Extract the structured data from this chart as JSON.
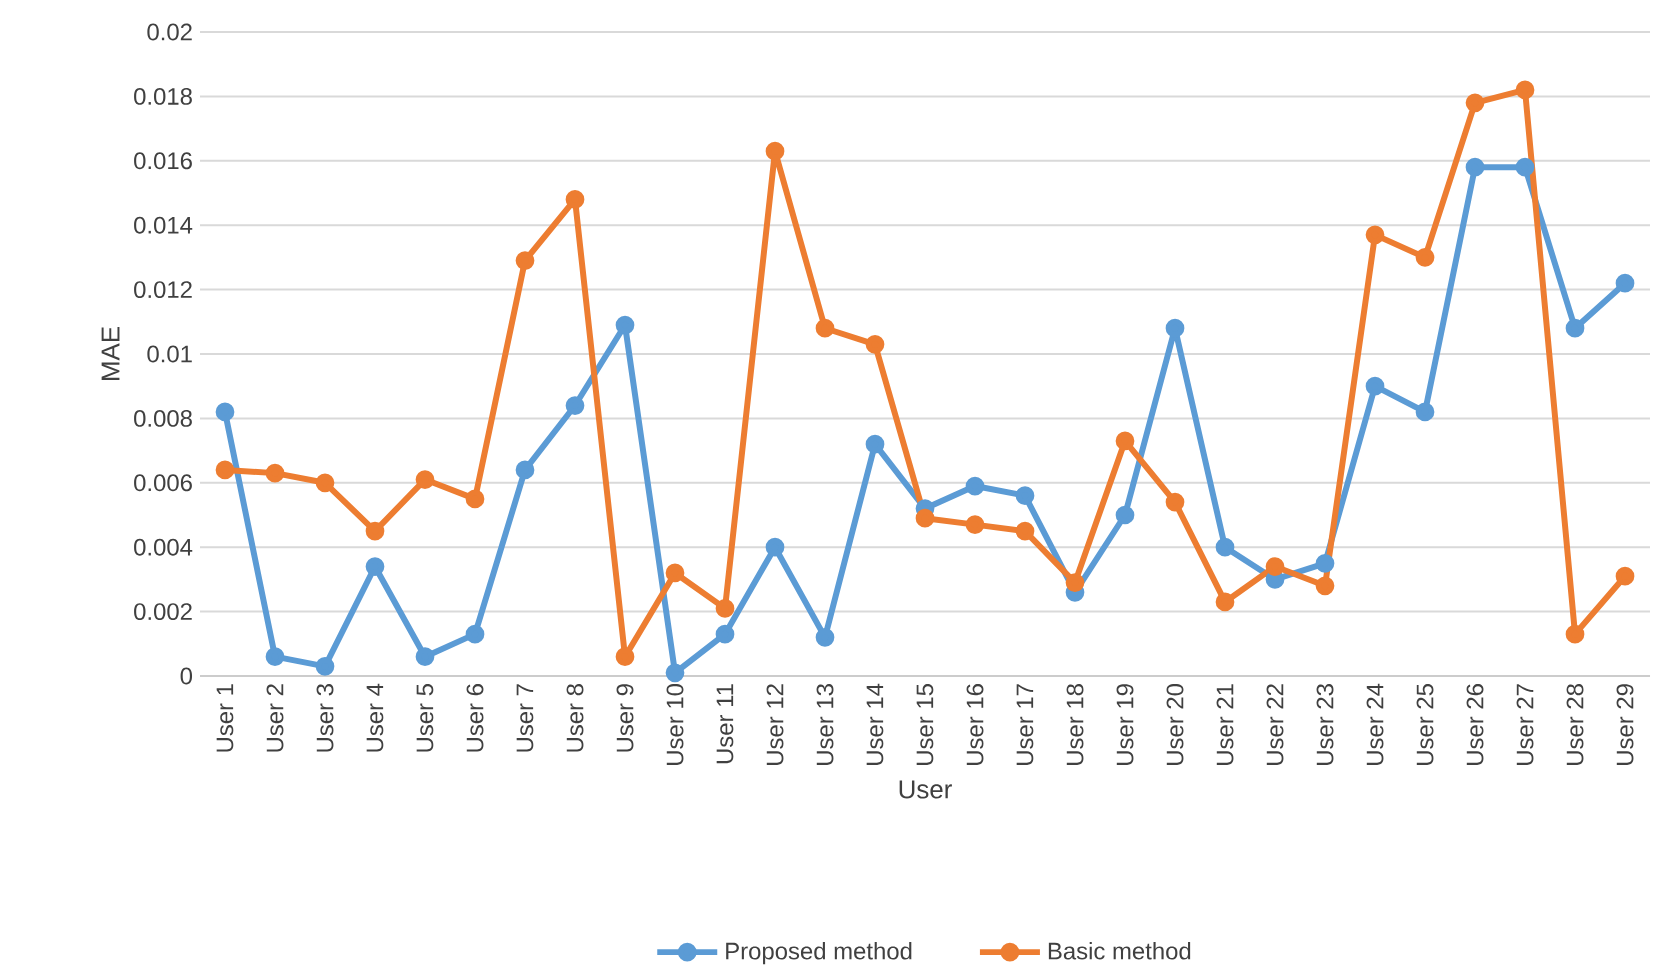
{
  "chart_data": {
    "type": "line",
    "xlabel": "User",
    "ylabel": "MAE",
    "categories": [
      "User 1",
      "User 2",
      "User 3",
      "User 4",
      "User 5",
      "User 6",
      "User 7",
      "User 8",
      "User 9",
      "User 10",
      "User 11",
      "User 12",
      "User 13",
      "User 14",
      "User 15",
      "User 16",
      "User 17",
      "User 18",
      "User 19",
      "User 20",
      "User 21",
      "User 22",
      "User 23",
      "User 24",
      "User 25",
      "User 26",
      "User 27",
      "User 28",
      "User 29"
    ],
    "series": [
      {
        "name": "Proposed method",
        "color": "#5b9bd5",
        "values": [
          0.0082,
          0.0006,
          0.0003,
          0.0034,
          0.0006,
          0.0013,
          0.0064,
          0.0084,
          0.0109,
          0.0001,
          0.0013,
          0.004,
          0.0012,
          0.0072,
          0.0052,
          0.0059,
          0.0056,
          0.0026,
          0.005,
          0.0108,
          0.004,
          0.003,
          0.0035,
          0.009,
          0.0082,
          0.0158,
          0.0158,
          0.0108,
          0.0122
        ]
      },
      {
        "name": "Basic method",
        "color": "#ed7d31",
        "values": [
          0.0064,
          0.0063,
          0.006,
          0.0045,
          0.0061,
          0.0055,
          0.0129,
          0.0148,
          0.0006,
          0.0032,
          0.0021,
          0.0163,
          0.0108,
          0.0103,
          0.0049,
          0.0047,
          0.0045,
          0.0029,
          0.0073,
          0.0054,
          0.0023,
          0.0034,
          0.0028,
          0.0137,
          0.013,
          0.0178,
          0.0182,
          0.0013,
          0.0031
        ]
      }
    ],
    "ylim": [
      0,
      0.02
    ],
    "yticks": [
      0,
      0.002,
      0.004,
      0.006,
      0.008,
      0.01,
      0.012,
      0.014,
      0.016,
      0.018,
      0.02
    ],
    "grid": "y",
    "legend": "bottom",
    "marker": "circle",
    "line_style": "solid"
  }
}
